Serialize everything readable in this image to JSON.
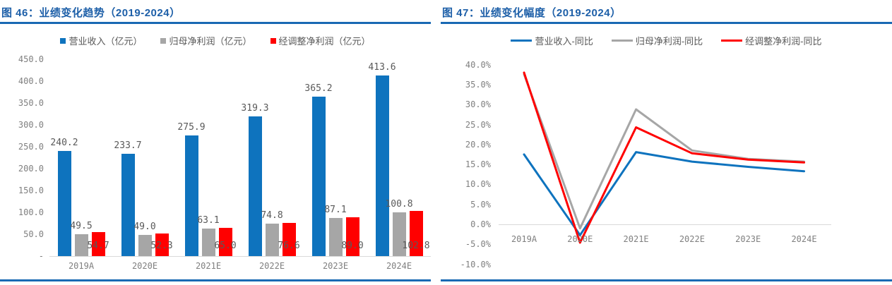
{
  "page": {
    "title_color": "#1d5fa8",
    "rule_color": "#1969b3",
    "axis_text_color": "#7f7f7f",
    "data_label_color": "#595959",
    "axis_line_color": "#d9d9d9"
  },
  "chart_data": [
    {
      "type": "bar",
      "title": "图 46：业绩变化趋势（2019-2024）",
      "legend_position": "top",
      "grid": false,
      "categories": [
        "2019A",
        "2020E",
        "2021E",
        "2022E",
        "2023E",
        "2024E"
      ],
      "series": [
        {
          "key": "revenue",
          "name": "营业收入（亿元）",
          "color": "#0e73be",
          "values": [
            240.2,
            233.7,
            275.9,
            319.3,
            365.2,
            413.6
          ],
          "label_pos": "above"
        },
        {
          "key": "net-profit",
          "name": "归母净利润（亿元）",
          "color": "#a6a6a6",
          "values": [
            49.5,
            49.0,
            63.1,
            74.8,
            87.1,
            100.8
          ],
          "label_pos": "above"
        },
        {
          "key": "adjusted-net-profit",
          "name": "经调整净利润（亿元）",
          "color": "#ff0000",
          "values": [
            54.7,
            52.3,
            65.0,
            76.6,
            89.0,
            102.8
          ],
          "label_pos": "inside-base"
        }
      ],
      "ylim": [
        0,
        450
      ],
      "ytick_step": 50,
      "ytick_labels": [
        "450.0",
        "400.0",
        "350.0",
        "300.0",
        "250.0",
        "200.0",
        "150.0",
        "100.0",
        "50.0",
        "-"
      ],
      "xlabel": "",
      "ylabel": ""
    },
    {
      "type": "line",
      "title": "图 47：业绩变化幅度（2019-2024）",
      "legend_position": "top",
      "grid": false,
      "categories": [
        "2019A",
        "2020E",
        "2021E",
        "2022E",
        "2023E",
        "2024E"
      ],
      "series": [
        {
          "key": "revenue-yoy",
          "name": "营业收入-同比",
          "color": "#0e73be",
          "values": [
            17.5,
            -2.7,
            18.1,
            15.7,
            14.4,
            13.3
          ]
        },
        {
          "key": "net-profit-yoy",
          "name": "归母净利润-同比",
          "color": "#a6a6a6",
          "values": [
            37.6,
            -1.0,
            28.8,
            18.5,
            16.4,
            15.7
          ]
        },
        {
          "key": "adjusted-net-profit-yoy",
          "name": "经调整净利润-同比",
          "color": "#ff0000",
          "values": [
            38.0,
            -4.6,
            24.3,
            17.8,
            16.2,
            15.5
          ]
        }
      ],
      "ylim": [
        -10,
        40
      ],
      "ytick_step": 5,
      "ytick_labels": [
        "40.0%",
        "35.0%",
        "30.0%",
        "25.0%",
        "20.0%",
        "15.0%",
        "10.0%",
        "5.0%",
        "0.0%",
        "-5.0%",
        "-10.0%"
      ],
      "xlabel": "",
      "ylabel": ""
    }
  ]
}
